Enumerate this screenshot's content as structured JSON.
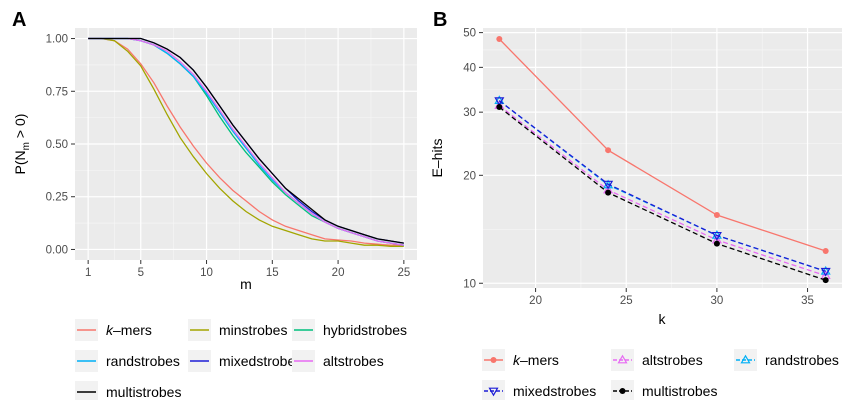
{
  "chart_data": [
    {
      "panel_label": "A",
      "type": "line",
      "xlabel": "m",
      "ylabel": "P(N",
      "ylabel_sub": "m",
      "ylabel_tail": " > 0)",
      "xlim": [
        0,
        26
      ],
      "ylim": [
        -0.05,
        1.05
      ],
      "xticks": [
        1,
        5,
        10,
        15,
        20,
        25
      ],
      "yticks": [
        0,
        0.25,
        0.5,
        0.75,
        1
      ],
      "ytick_labels": [
        "0.00",
        "0.25",
        "0.50",
        "0.75",
        "1.00"
      ],
      "grid": true,
      "legend_position": "bottom",
      "x": [
        1,
        2,
        3,
        4,
        5,
        6,
        7,
        8,
        9,
        10,
        11,
        12,
        13,
        14,
        15,
        16,
        17,
        18,
        19,
        20,
        21,
        22,
        23,
        24,
        25
      ],
      "series": [
        {
          "name": "k–mers",
          "color": "#F8766D",
          "values": [
            1,
            1,
            0.99,
            0.95,
            0.88,
            0.79,
            0.68,
            0.58,
            0.49,
            0.41,
            0.34,
            0.28,
            0.23,
            0.18,
            0.14,
            0.11,
            0.09,
            0.07,
            0.05,
            0.045,
            0.04,
            0.03,
            0.025,
            0.02,
            0.02
          ]
        },
        {
          "name": "minstrobes",
          "color": "#A3A500",
          "values": [
            1,
            1,
            0.99,
            0.94,
            0.87,
            0.76,
            0.64,
            0.53,
            0.44,
            0.36,
            0.29,
            0.23,
            0.18,
            0.14,
            0.11,
            0.09,
            0.07,
            0.05,
            0.04,
            0.04,
            0.03,
            0.02,
            0.02,
            0.015,
            0.015
          ]
        },
        {
          "name": "hybridstrobes",
          "color": "#00BF7D",
          "values": [
            1,
            1,
            1,
            1,
            0.99,
            0.97,
            0.93,
            0.88,
            0.82,
            0.73,
            0.63,
            0.54,
            0.46,
            0.39,
            0.32,
            0.26,
            0.21,
            0.16,
            0.13,
            0.1,
            0.08,
            0.06,
            0.04,
            0.03,
            0.02
          ]
        },
        {
          "name": "randstrobes",
          "color": "#00B0F6",
          "values": [
            1,
            1,
            1,
            1,
            0.99,
            0.97,
            0.93,
            0.88,
            0.82,
            0.74,
            0.65,
            0.56,
            0.48,
            0.4,
            0.33,
            0.27,
            0.22,
            0.17,
            0.13,
            0.1,
            0.08,
            0.06,
            0.04,
            0.03,
            0.02
          ]
        },
        {
          "name": "mixedstrobes",
          "color": "#1C1CD6",
          "values": [
            1,
            1,
            1,
            1,
            1,
            0.98,
            0.95,
            0.91,
            0.85,
            0.77,
            0.68,
            0.59,
            0.51,
            0.43,
            0.36,
            0.29,
            0.23,
            0.18,
            0.14,
            0.11,
            0.09,
            0.07,
            0.05,
            0.04,
            0.03
          ]
        },
        {
          "name": "altstrobes",
          "color": "#E76BF3",
          "values": [
            1,
            1,
            1,
            1,
            0.99,
            0.97,
            0.94,
            0.89,
            0.83,
            0.75,
            0.66,
            0.57,
            0.49,
            0.41,
            0.34,
            0.27,
            0.22,
            0.17,
            0.13,
            0.1,
            0.08,
            0.06,
            0.04,
            0.03,
            0.02
          ]
        },
        {
          "name": "multistrobes",
          "color": "#000000",
          "values": [
            1,
            1,
            1,
            1,
            1,
            0.98,
            0.95,
            0.91,
            0.85,
            0.77,
            0.68,
            0.59,
            0.51,
            0.43,
            0.36,
            0.29,
            0.24,
            0.19,
            0.14,
            0.11,
            0.09,
            0.07,
            0.05,
            0.04,
            0.03
          ]
        }
      ],
      "legend_rows": [
        [
          "k–mers",
          "minstrobes",
          "hybridstrobes"
        ],
        [
          "randstrobes",
          "mixedstrobes",
          "altstrobes"
        ],
        [
          "multistrobes"
        ]
      ]
    },
    {
      "panel_label": "B",
      "type": "line",
      "xlabel": "k",
      "ylabel": "E–hits",
      "scale_y": "log",
      "xlim": [
        17.1,
        36.9
      ],
      "ylim": [
        9.7,
        51.5
      ],
      "xticks": [
        20,
        25,
        30,
        35
      ],
      "yticks": [
        10,
        20,
        30,
        40,
        50
      ],
      "grid": true,
      "legend_position": "bottom",
      "x": [
        18,
        24,
        30,
        36
      ],
      "series": [
        {
          "name": "k–mers",
          "color": "#F8766D",
          "marker": "circle",
          "dashed": false,
          "values": [
            48,
            23.5,
            15.5,
            12.3
          ]
        },
        {
          "name": "altstrobes",
          "color": "#E76BF3",
          "marker": "triangle-up",
          "dashed": true,
          "values": [
            31.3,
            18.2,
            13.2,
            10.5
          ]
        },
        {
          "name": "randstrobes",
          "color": "#00B0F6",
          "marker": "triangle-up",
          "dashed": true,
          "values": [
            32.3,
            18.8,
            13.6,
            10.8
          ]
        },
        {
          "name": "mixedstrobes",
          "color": "#1C1CD6",
          "marker": "triangle-down",
          "dashed": true,
          "values": [
            32.3,
            18.9,
            13.6,
            10.8
          ]
        },
        {
          "name": "multistrobes",
          "color": "#000000",
          "marker": "circle",
          "dashed": true,
          "values": [
            31.0,
            17.9,
            12.9,
            10.2
          ]
        }
      ],
      "legend_rows": [
        [
          "k–mers",
          "altstrobes",
          "randstrobes"
        ],
        [
          "mixedstrobes",
          "multistrobes"
        ]
      ]
    }
  ]
}
